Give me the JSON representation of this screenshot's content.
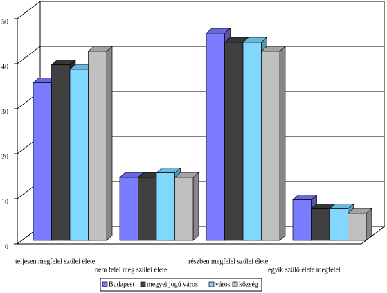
{
  "chart_data": {
    "type": "bar3d",
    "categories": [
      "teljesen megfelel szülei élete",
      "nem felel meg szülei élete",
      "részben megfelel szülei élete",
      "egyik szülő élete megfelel"
    ],
    "series": [
      {
        "name": "Budapest",
        "color": "#7b7bff",
        "values": [
          35,
          14,
          46,
          9
        ]
      },
      {
        "name": "megyei jogú város",
        "color": "#404040",
        "values": [
          39,
          14,
          44,
          7
        ]
      },
      {
        "name": "város",
        "color": "#80d8ff",
        "values": [
          38,
          15,
          44,
          7
        ]
      },
      {
        "name": "község",
        "color": "#c0c0c0",
        "values": [
          42,
          14,
          42,
          6
        ]
      }
    ],
    "ylim": [
      0,
      50
    ],
    "yticks": [
      0,
      10,
      20,
      30,
      40,
      50
    ],
    "grid": true,
    "legend": "bottom"
  }
}
